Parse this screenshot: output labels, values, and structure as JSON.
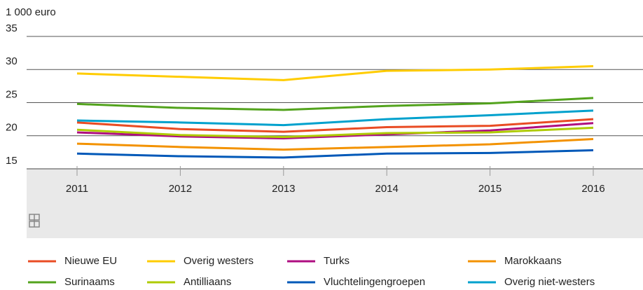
{
  "chart_data": {
    "type": "line",
    "y_axis_label": "1 000 euro",
    "categories": [
      "2011",
      "2012",
      "2013",
      "2014",
      "2015",
      "2016"
    ],
    "series": [
      {
        "name": "Nieuwe EU",
        "color": "#e94c24",
        "values": [
          22.0,
          21.0,
          20.6,
          21.3,
          21.5,
          22.5
        ]
      },
      {
        "name": "Overig westers",
        "color": "#ffcc00",
        "values": [
          29.4,
          28.9,
          28.4,
          29.8,
          30.0,
          30.5
        ]
      },
      {
        "name": "Turks",
        "color": "#af0e80",
        "values": [
          20.5,
          19.9,
          19.6,
          20.2,
          20.8,
          21.9
        ]
      },
      {
        "name": "Marokkaans",
        "color": "#f39200",
        "values": [
          18.8,
          18.3,
          17.9,
          18.3,
          18.7,
          19.5
        ]
      },
      {
        "name": "Surinaams",
        "color": "#53a31d",
        "values": [
          24.8,
          24.2,
          23.9,
          24.5,
          24.9,
          25.7
        ]
      },
      {
        "name": "Antilliaans",
        "color": "#afcb05",
        "values": [
          20.9,
          20.1,
          19.8,
          20.4,
          20.5,
          21.2
        ]
      },
      {
        "name": "Vluchtelingengroepen",
        "color": "#0058b8",
        "values": [
          17.3,
          16.9,
          16.7,
          17.3,
          17.4,
          17.8
        ]
      },
      {
        "name": "Overig niet-westers",
        "color": "#00a1cd",
        "values": [
          22.3,
          22.0,
          21.6,
          22.5,
          23.1,
          23.8
        ]
      }
    ],
    "ylim": [
      15,
      35
    ],
    "yticks": [
      15,
      20,
      25,
      30,
      35
    ],
    "grid": true,
    "legend": "bottom"
  }
}
